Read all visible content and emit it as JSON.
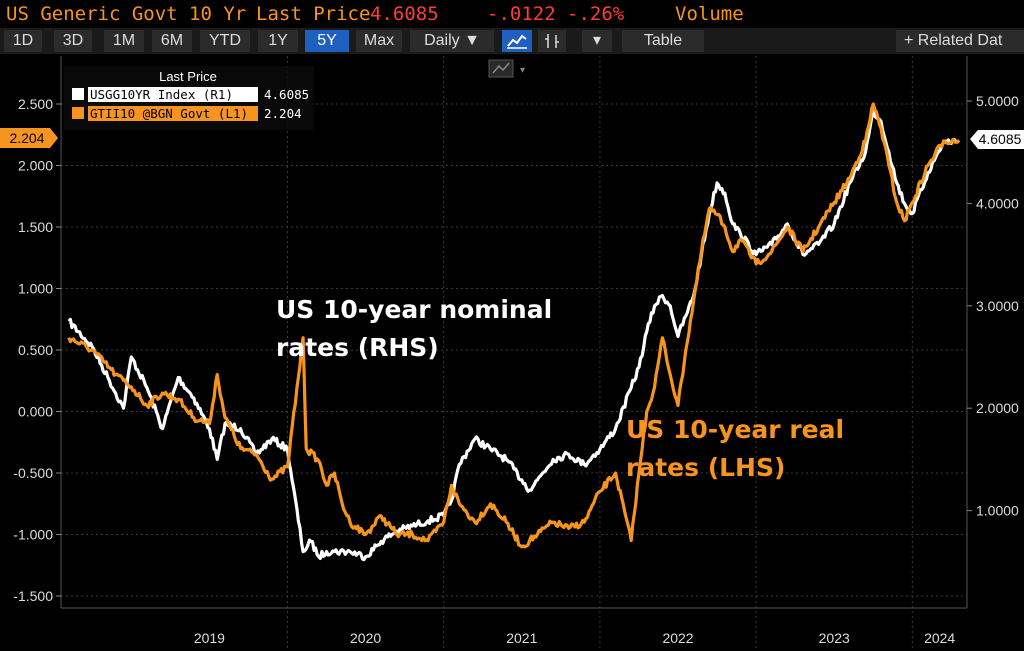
{
  "header": {
    "security": "US Generic Govt 10 Yr",
    "last_price_label": "Last Price",
    "last_price": "4.6085",
    "change": "-.0122",
    "change_pct": "-.26%",
    "volume_label": "Volume"
  },
  "toolbar": {
    "ranges": [
      "1D",
      "3D",
      "1M",
      "6M",
      "YTD",
      "1Y",
      "5Y",
      "Max"
    ],
    "selected_range": "5Y",
    "frequency": "Daily ▼",
    "chart_icon": "line-chart-icon",
    "chart_icon2": "candlestick-icon",
    "dropdown": "▾",
    "table_label": "Table",
    "related": "+ Related Dat"
  },
  "colors": {
    "nominal": "#ffffff",
    "real": "#f7941d",
    "background": "#000000",
    "accent": "#1f5fbf"
  },
  "chart_data": {
    "type": "line",
    "x_labels": [
      "2019",
      "2020",
      "2021",
      "2022",
      "2023",
      "2024"
    ],
    "legend": {
      "title": "Last Price",
      "entries": [
        {
          "label": "USGG10YR Index  (R1)",
          "value": "4.6085",
          "color": "#ffffff"
        },
        {
          "label": "GTII10 @BGN Govt  (L1)",
          "value": "2.204",
          "color": "#f7941d"
        }
      ]
    },
    "left_axis": {
      "ticks": [
        "2.500",
        "2.000",
        "1.500",
        "1.000",
        "0.500",
        "0.000",
        "-0.500",
        "-1.000",
        "-1.500"
      ],
      "range": [
        -1.5,
        2.5
      ],
      "current_tag": "2.204"
    },
    "right_axis": {
      "ticks": [
        "5.0000",
        "4.0000",
        "3.0000",
        "2.0000",
        "1.0000"
      ],
      "range": [
        0.5,
        5.0
      ],
      "current_tag": "4.6085"
    },
    "annotations": {
      "nominal_1": "US 10-year nominal",
      "nominal_2": "rates (RHS)",
      "real_1": "US 10-year real",
      "real_2": "rates (LHS)"
    },
    "series": [
      {
        "name": "USGG10YR Index",
        "axis": "right",
        "color": "#ffffff",
        "x": [
          2018.6,
          2018.75,
          2018.85,
          2018.95,
          2019.0,
          2019.1,
          2019.2,
          2019.3,
          2019.4,
          2019.5,
          2019.55,
          2019.6,
          2019.7,
          2019.8,
          2019.9,
          2020.0,
          2020.1,
          2020.15,
          2020.2,
          2020.25,
          2020.3,
          2020.4,
          2020.5,
          2020.6,
          2020.7,
          2020.8,
          2020.9,
          2021.0,
          2021.05,
          2021.1,
          2021.2,
          2021.3,
          2021.4,
          2021.5,
          2021.55,
          2021.6,
          2021.7,
          2021.8,
          2021.9,
          2022.0,
          2022.1,
          2022.2,
          2022.25,
          2022.3,
          2022.35,
          2022.4,
          2022.45,
          2022.5,
          2022.55,
          2022.6,
          2022.65,
          2022.7,
          2022.75,
          2022.8,
          2022.85,
          2022.9,
          2023.0,
          2023.1,
          2023.2,
          2023.3,
          2023.4,
          2023.5,
          2023.6,
          2023.7,
          2023.75,
          2023.8,
          2023.85,
          2023.9,
          2023.95,
          2024.0,
          2024.1,
          2024.2,
          2024.3
        ],
        "y": [
          2.85,
          2.6,
          2.3,
          2.0,
          2.5,
          2.2,
          1.8,
          2.3,
          2.1,
          1.8,
          1.5,
          1.85,
          1.8,
          1.55,
          1.7,
          1.6,
          0.6,
          0.7,
          0.55,
          0.6,
          0.6,
          0.6,
          0.55,
          0.7,
          0.8,
          0.85,
          0.9,
          0.95,
          1.1,
          1.45,
          1.7,
          1.6,
          1.5,
          1.3,
          1.2,
          1.3,
          1.5,
          1.55,
          1.45,
          1.6,
          1.8,
          2.2,
          2.4,
          2.75,
          3.0,
          3.1,
          3.0,
          2.7,
          2.9,
          3.1,
          3.5,
          3.9,
          4.2,
          4.1,
          3.8,
          3.7,
          3.5,
          3.6,
          3.8,
          3.5,
          3.6,
          3.8,
          4.2,
          4.5,
          4.9,
          4.8,
          4.5,
          4.2,
          4.0,
          3.9,
          4.3,
          4.6,
          4.6085
        ]
      },
      {
        "name": "GTII10 @BGN Govt",
        "axis": "left",
        "color": "#f7941d",
        "x": [
          2018.6,
          2018.75,
          2018.9,
          2019.0,
          2019.1,
          2019.2,
          2019.3,
          2019.4,
          2019.5,
          2019.55,
          2019.6,
          2019.7,
          2019.8,
          2019.9,
          2020.0,
          2020.1,
          2020.12,
          2020.2,
          2020.25,
          2020.3,
          2020.35,
          2020.4,
          2020.5,
          2020.6,
          2020.7,
          2020.8,
          2020.9,
          2021.0,
          2021.05,
          2021.1,
          2021.2,
          2021.3,
          2021.4,
          2021.5,
          2021.55,
          2021.6,
          2021.7,
          2021.8,
          2021.9,
          2022.0,
          2022.1,
          2022.2,
          2022.25,
          2022.3,
          2022.35,
          2022.4,
          2022.45,
          2022.5,
          2022.55,
          2022.6,
          2022.65,
          2022.7,
          2022.75,
          2022.8,
          2022.85,
          2022.9,
          2023.0,
          2023.1,
          2023.2,
          2023.3,
          2023.4,
          2023.5,
          2023.6,
          2023.7,
          2023.75,
          2023.8,
          2023.85,
          2023.9,
          2023.95,
          2024.0,
          2024.1,
          2024.2,
          2024.3
        ],
        "y": [
          0.6,
          0.5,
          0.3,
          0.2,
          0.05,
          0.15,
          0.1,
          -0.05,
          -0.1,
          0.3,
          -0.05,
          -0.3,
          -0.35,
          -0.55,
          -0.45,
          0.6,
          -0.3,
          -0.4,
          -0.6,
          -0.5,
          -0.75,
          -0.9,
          -1.0,
          -0.85,
          -1.0,
          -1.0,
          -1.05,
          -0.9,
          -0.6,
          -0.75,
          -0.9,
          -0.75,
          -0.9,
          -1.1,
          -1.05,
          -1.0,
          -0.9,
          -0.95,
          -0.9,
          -0.65,
          -0.5,
          -1.05,
          -0.5,
          0.0,
          0.2,
          0.6,
          0.3,
          0.05,
          0.5,
          0.9,
          1.3,
          1.65,
          1.6,
          1.5,
          1.3,
          1.4,
          1.2,
          1.3,
          1.5,
          1.3,
          1.5,
          1.7,
          1.9,
          2.2,
          2.5,
          2.3,
          2.0,
          1.7,
          1.55,
          1.7,
          2.0,
          2.2,
          2.204
        ]
      }
    ]
  }
}
